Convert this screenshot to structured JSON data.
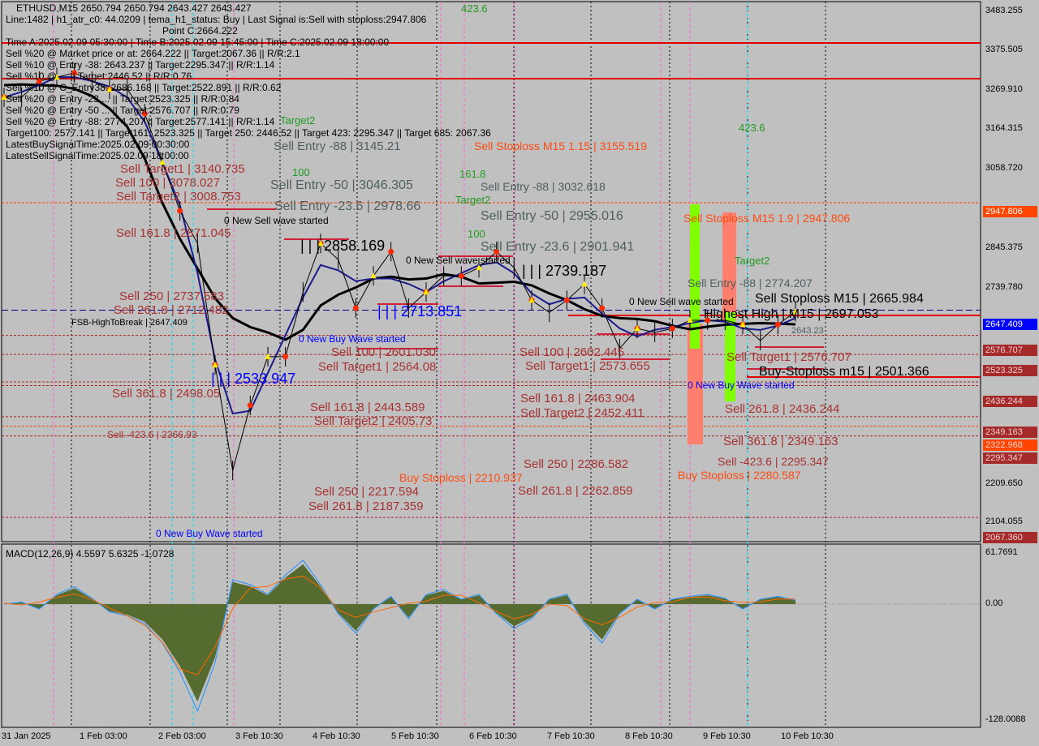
{
  "colors": {
    "background": "#c0c0c0",
    "sell_label": "#a83232",
    "stoploss": "#ff4a10",
    "buy_wave": "#0000ff",
    "target_green": "#1f9a1f",
    "axis_box_red": "#a52a2a",
    "axis_box_orange": "#ff4500",
    "axis_box_blue": "#0000ff",
    "macd_histogram": "#556b2f"
  },
  "info": [
    "ETHUSD,M15  2650.794 2650.794 2643.427 2643.427",
    "Line:1482 | h1_atr_c0: 44.0209 | tema_h1_status: Buy | Last Signal is:Sell with stoploss:2947.806",
    "Point C:2664.222",
    "Time A:2025.02.09 05:30:00 | Time B:2025.02.09 15:45:00 | Time C:2025.02.09 18:00:00",
    "Sell %20 @ Market price or at: 2664.222 || Target:2067.36 || R/R:2.1",
    "Sell %10 @ Entry -38: 2643.237 || Target:2295.347 || R/R:1.14",
    "Sell %10 @ ... || Target:2446.52 || R/R:0.76",
    "Sell %10 @ C_Entry38: 2686.168 || Target:2522.891 || R/R:0.62",
    "Sell %20 @ Entry -23 ... || Target:2523.325 || R/R:0.84",
    "Sell %20 @ Entry -50 ... || Target:2576.707 || R/R:0.79",
    "Sell %20 @ Entry -88: 2774.207 || Target:2577.141 || R/R:1.14",
    "Target100: 2577.141 || Target161: 2523.325 || Target 250: 2446.52 || Target 423: 2295.347 || Target 685: 2067.36",
    "LatestBuySignalTime:2025.02.09 00:30:00",
    "LatestSellSignalTime:2025.02.09 18:00:00"
  ],
  "labels": [
    "Sell Target1 | 3140.735",
    "Sell Entry -88 | 3145.21",
    "Target2",
    "100",
    "Sell Entry -50 | 3046.305",
    "Sell 100 | 3078.027",
    "Sell Target2 | 3008.753",
    "Sell Entry -23.6 | 2978.66",
    "0 New Sell wave started",
    "Sell 161.8 | 2871.045",
    "Sell Stoploss M15 1.15 | 3155.519",
    "423.6",
    "423.6",
    "Sell Entry -88 | 3032.618",
    "Target2",
    "Sell Entry -50 | 2955.016",
    "100",
    "Sell Entry -23.6 | 2901.941",
    "0 New Sell wave started",
    "| | | 2858.169",
    "| | | 2739.187",
    "| | | 2713.851",
    "Sell  250 | 2737.583",
    "Sell  261.8 | 2712.482",
    "FSB-HighToBreak | 2647.409",
    "0 New Buy Wave started",
    "Sell 100 | 2601.030",
    "Sell Target1 | 2564.08",
    "| | | 2533.947",
    "Sell  361.8 | 2498.05",
    "Sell 161.8 | 2443.589",
    "Sell Target2 | 2405.73",
    "Sell -423.6 | 2366.93",
    "Sell  250 | 2217.594",
    "Sell  261.8 | 2187.359",
    "Buy Stoploss | 2210.937",
    "0 New Buy Wave started",
    "Sell 100 | 2602.445",
    "Sell Target1 | 2573.655",
    "Sell 161.8 | 2463.904",
    "Sell Target2 | 2452.411",
    "Sell  250 | 2286.582",
    "Sell  261.8 | 2262.859",
    "0 New Sell wave started",
    "Sell Stoploss M15 1.9 | 2947.806",
    "Sell Entry -88 | 2774.207",
    "Highest High | M15 | 2697.053",
    "Sell Stoploss M15 | 2665.984",
    "Target2",
    "Sell Target1 | 2576.707",
    "Buy-Stoploss m15 | 2501.366",
    "0 New Buy Wave started",
    "Sell 261.8 | 2436.244",
    "Sell  361.8 | 2349.163",
    "Sell -423.6 | 2295.347",
    "Buy Stoploss | 2280.587",
    "2643.23",
    "161.8"
  ],
  "price_axis": [
    "3483.255",
    "3375.505",
    "3269.910",
    "3164.315",
    "3058.720",
    "2845.375",
    "2739.780",
    "2209.650",
    "2104.055"
  ],
  "price_tags": [
    {
      "text": "2947.806",
      "kind": "orange"
    },
    {
      "text": "2647.409",
      "kind": "blue"
    },
    {
      "text": "2576.707",
      "kind": "red"
    },
    {
      "text": "2523.325",
      "kind": "red"
    },
    {
      "text": "2436.244",
      "kind": "red"
    },
    {
      "text": "2349.163",
      "kind": "red"
    },
    {
      "text": "2322.968",
      "kind": "orange"
    },
    {
      "text": "2295.347",
      "kind": "red"
    },
    {
      "text": "2067.360",
      "kind": "red"
    }
  ],
  "macd": {
    "title": "MACD(12,26,9) 4.5597 5.6325 -1.0728",
    "axis": [
      "61.7691",
      "0.00",
      "-128.0088"
    ]
  },
  "dates": [
    "31 Jan 2025",
    "1 Feb 03:00",
    "2 Feb 03:00",
    "3 Feb 10:30",
    "4 Feb 10:30",
    "5 Feb 10:30",
    "6 Feb 10:30",
    "7 Feb 10:30",
    "8 Feb 10:30",
    "9 Feb 10:30",
    "10 Feb 10:30"
  ],
  "chart_data": {
    "type": "line",
    "symbol": "ETHUSD",
    "timeframe": "M15",
    "ylim": [
      2067.36,
      3483.255
    ],
    "price_approx": [
      3243,
      3243,
      3288,
      3299,
      3311,
      3288,
      3265,
      3265,
      3197,
      3061,
      2925,
      2834,
      2494,
      2199,
      2381,
      2517,
      2517,
      2698,
      2834,
      2789,
      2653,
      2743,
      2811,
      2653,
      2698,
      2743,
      2743,
      2766,
      2811,
      2766,
      2675,
      2641,
      2675,
      2720,
      2653,
      2540,
      2596,
      2585,
      2596,
      2619,
      2619,
      2619,
      2607,
      2562,
      2607,
      2643
    ],
    "macd_hist_approx": [
      0,
      2,
      -5,
      10,
      18,
      6,
      -8,
      -12,
      -20,
      -40,
      -70,
      -110,
      -60,
      25,
      20,
      10,
      30,
      45,
      20,
      -10,
      -30,
      -5,
      8,
      -15,
      10,
      15,
      5,
      10,
      -10,
      -25,
      -15,
      5,
      10,
      -20,
      -40,
      -10,
      5,
      -5,
      5,
      8,
      10,
      6,
      -5,
      5,
      8,
      4
    ],
    "macd_axis_range": [
      -128.0088,
      61.7691
    ]
  }
}
